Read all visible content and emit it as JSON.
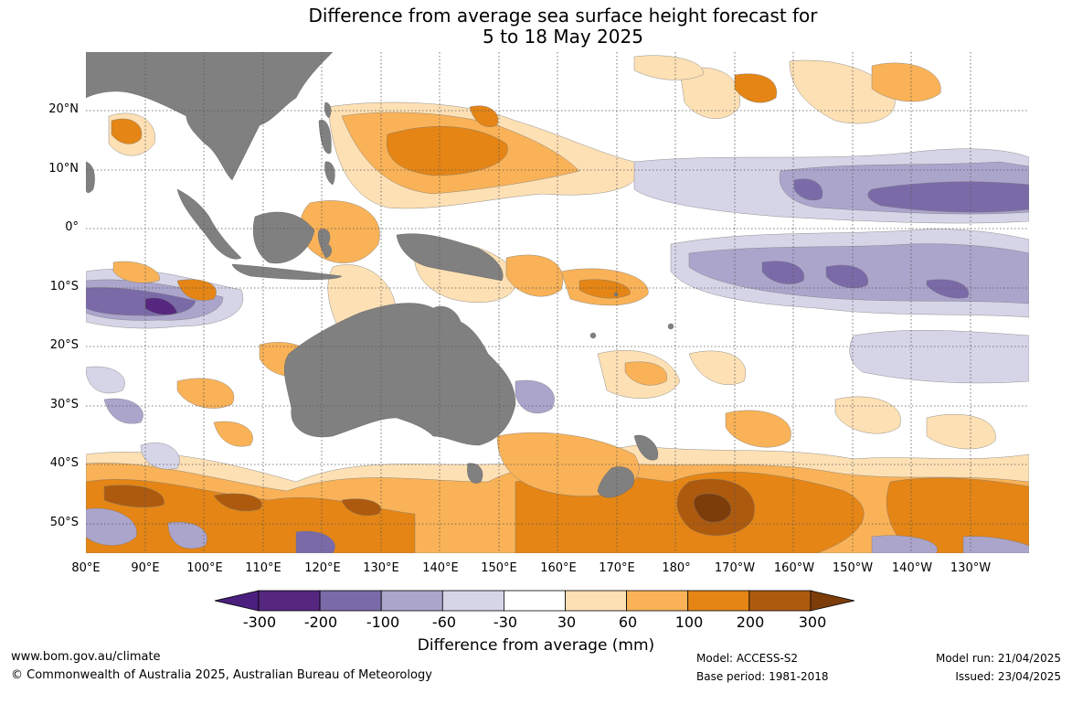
{
  "title_line1": "Difference from average sea surface height forecast for",
  "title_line2": "5 to 18 May 2025",
  "lat_labels": [
    "20°N",
    "10°N",
    "0°",
    "10°S",
    "20°S",
    "30°S",
    "40°S",
    "50°S"
  ],
  "lon_labels": [
    "80°E",
    "90°E",
    "100°E",
    "110°E",
    "120°E",
    "130°E",
    "140°E",
    "150°E",
    "160°E",
    "170°E",
    "180°",
    "170°W",
    "160°W",
    "150°W",
    "140°W",
    "130°W"
  ],
  "colorbar": {
    "ticks": [
      "-300",
      "-200",
      "-100",
      "-60",
      "-30",
      "30",
      "60",
      "100",
      "200",
      "300"
    ],
    "colors": [
      "#4a1f7e",
      "#55277f",
      "#7b6aa8",
      "#aba5cc",
      "#d6d5e8",
      "#ffffff",
      "#fde0b4",
      "#f9b257",
      "#e48515",
      "#ad5a0e",
      "#7c3d0b"
    ],
    "label": "Difference from average (mm)"
  },
  "map_colors": {
    "land": "#808080",
    "ocean": "#ffffff",
    "grid": "#555555"
  },
  "footer": {
    "website": "www.bom.gov.au/climate",
    "copyright": "© Commonwealth of Australia 2025, Australian Bureau of Meteorology",
    "model": "Model: ACCESS-S2",
    "base_period": "Base period: 1981-2018",
    "model_run": "Model run: 21/04/2025",
    "issued": "Issued: 23/04/2025"
  }
}
